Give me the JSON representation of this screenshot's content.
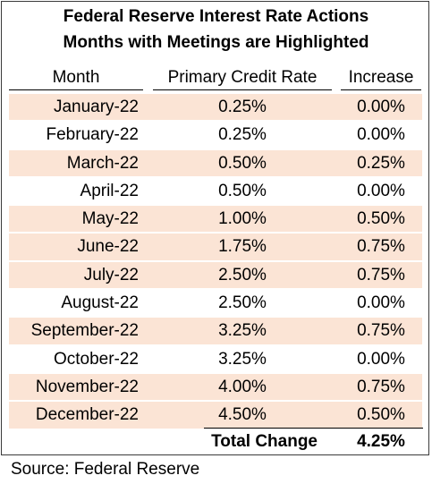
{
  "chart_data": {
    "type": "table",
    "title": "Federal Reserve Interest Rate Actions",
    "subtitle": "Months with Meetings are Highlighted",
    "columns": [
      "Month",
      "Primary Credit Rate",
      "Increase"
    ],
    "rows": [
      {
        "month": "January-22",
        "rate": "0.25%",
        "increase": "0.00%",
        "highlighted": true
      },
      {
        "month": "February-22",
        "rate": "0.25%",
        "increase": "0.00%",
        "highlighted": false
      },
      {
        "month": "March-22",
        "rate": "0.50%",
        "increase": "0.25%",
        "highlighted": true
      },
      {
        "month": "April-22",
        "rate": "0.50%",
        "increase": "0.00%",
        "highlighted": false
      },
      {
        "month": "May-22",
        "rate": "1.00%",
        "increase": "0.50%",
        "highlighted": true
      },
      {
        "month": "June-22",
        "rate": "1.75%",
        "increase": "0.75%",
        "highlighted": true
      },
      {
        "month": "July-22",
        "rate": "2.50%",
        "increase": "0.75%",
        "highlighted": true
      },
      {
        "month": "August-22",
        "rate": "2.50%",
        "increase": "0.00%",
        "highlighted": false
      },
      {
        "month": "September-22",
        "rate": "3.25%",
        "increase": "0.75%",
        "highlighted": true
      },
      {
        "month": "October-22",
        "rate": "3.25%",
        "increase": "0.00%",
        "highlighted": false
      },
      {
        "month": "November-22",
        "rate": "4.00%",
        "increase": "0.75%",
        "highlighted": true
      },
      {
        "month": "December-22",
        "rate": "4.50%",
        "increase": "0.50%",
        "highlighted": true
      }
    ],
    "total_label": "Total Change",
    "total_value": "4.25%",
    "highlight_color": "#fbe4d5"
  },
  "source": "Source: Federal Reserve"
}
